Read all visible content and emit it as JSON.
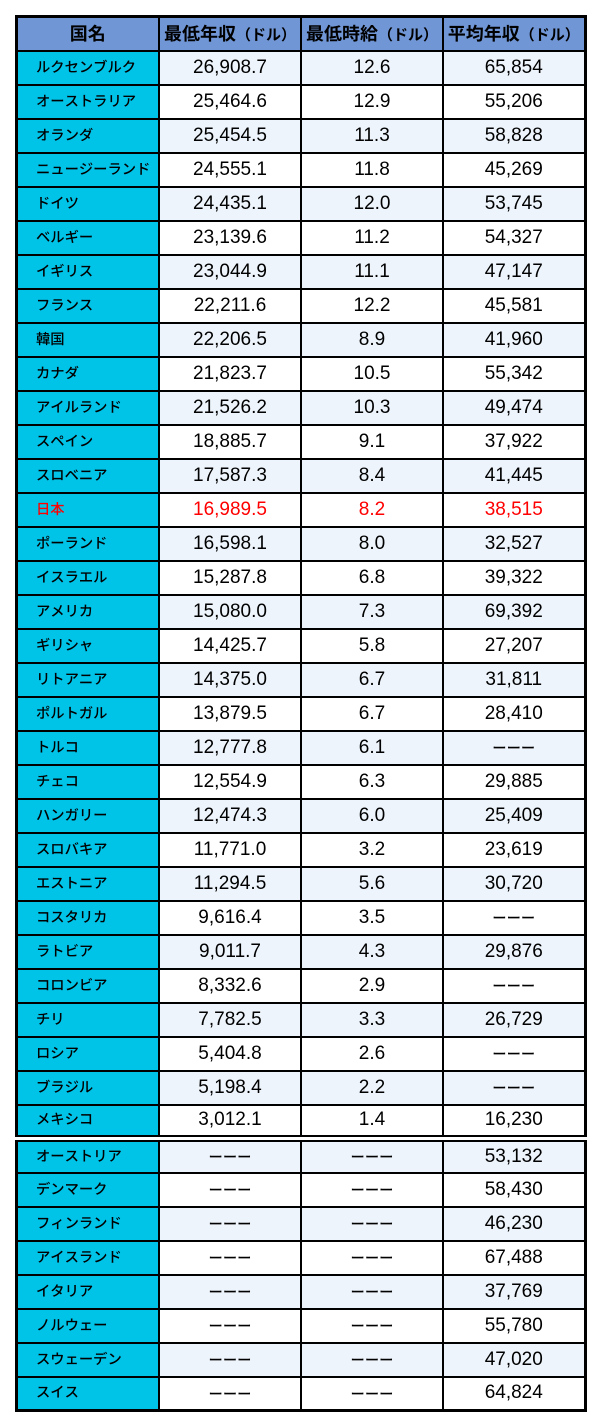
{
  "colors": {
    "page_bg": "#ffffff",
    "header_bg": "#7096d6",
    "country_bg": "#00c3e8",
    "row_tint": "#edf4fb",
    "row_white": "#ffffff",
    "border": "#000000",
    "text": "#000000",
    "highlight_text": "#ff0000"
  },
  "table": {
    "columns": [
      {
        "label": "国名",
        "unit": ""
      },
      {
        "label": "最低年収",
        "unit": "（ドル）"
      },
      {
        "label": "最低時給",
        "unit": "（ドル）"
      },
      {
        "label": "平均年収",
        "unit": "（ドル）"
      }
    ],
    "no_data_marker": "ーーー",
    "highlighted_country": "日本",
    "rows": [
      {
        "country": "ルクセンブルク",
        "min_annual": "26,908.7",
        "min_hourly": "12.6",
        "avg_annual": "65,854"
      },
      {
        "country": "オーストラリア",
        "min_annual": "25,464.6",
        "min_hourly": "12.9",
        "avg_annual": "55,206"
      },
      {
        "country": "オランダ",
        "min_annual": "25,454.5",
        "min_hourly": "11.3",
        "avg_annual": "58,828"
      },
      {
        "country": "ニュージーランド",
        "min_annual": "24,555.1",
        "min_hourly": "11.8",
        "avg_annual": "45,269"
      },
      {
        "country": "ドイツ",
        "min_annual": "24,435.1",
        "min_hourly": "12.0",
        "avg_annual": "53,745"
      },
      {
        "country": "ベルギー",
        "min_annual": "23,139.6",
        "min_hourly": "11.2",
        "avg_annual": "54,327"
      },
      {
        "country": "イギリス",
        "min_annual": "23,044.9",
        "min_hourly": "11.1",
        "avg_annual": "47,147"
      },
      {
        "country": "フランス",
        "min_annual": "22,211.6",
        "min_hourly": "12.2",
        "avg_annual": "45,581"
      },
      {
        "country": "韓国",
        "min_annual": "22,206.5",
        "min_hourly": "8.9",
        "avg_annual": "41,960"
      },
      {
        "country": "カナダ",
        "min_annual": "21,823.7",
        "min_hourly": "10.5",
        "avg_annual": "55,342"
      },
      {
        "country": "アイルランド",
        "min_annual": "21,526.2",
        "min_hourly": "10.3",
        "avg_annual": "49,474"
      },
      {
        "country": "スペイン",
        "min_annual": "18,885.7",
        "min_hourly": "9.1",
        "avg_annual": "37,922"
      },
      {
        "country": "スロベニア",
        "min_annual": "17,587.3",
        "min_hourly": "8.4",
        "avg_annual": "41,445"
      },
      {
        "country": "日本",
        "min_annual": "16,989.5",
        "min_hourly": "8.2",
        "avg_annual": "38,515",
        "highlight": true
      },
      {
        "country": "ポーランド",
        "min_annual": "16,598.1",
        "min_hourly": "8.0",
        "avg_annual": "32,527"
      },
      {
        "country": "イスラエル",
        "min_annual": "15,287.8",
        "min_hourly": "6.8",
        "avg_annual": "39,322"
      },
      {
        "country": "アメリカ",
        "min_annual": "15,080.0",
        "min_hourly": "7.3",
        "avg_annual": "69,392"
      },
      {
        "country": "ギリシャ",
        "min_annual": "14,425.7",
        "min_hourly": "5.8",
        "avg_annual": "27,207"
      },
      {
        "country": "リトアニア",
        "min_annual": "14,375.0",
        "min_hourly": "6.7",
        "avg_annual": "31,811"
      },
      {
        "country": "ポルトガル",
        "min_annual": "13,879.5",
        "min_hourly": "6.7",
        "avg_annual": "28,410"
      },
      {
        "country": "トルコ",
        "min_annual": "12,777.8",
        "min_hourly": "6.1",
        "avg_annual": "ーーー"
      },
      {
        "country": "チェコ",
        "min_annual": "12,554.9",
        "min_hourly": "6.3",
        "avg_annual": "29,885"
      },
      {
        "country": "ハンガリー",
        "min_annual": "12,474.3",
        "min_hourly": "6.0",
        "avg_annual": "25,409"
      },
      {
        "country": "スロバキア",
        "min_annual": "11,771.0",
        "min_hourly": "3.2",
        "avg_annual": "23,619"
      },
      {
        "country": "エストニア",
        "min_annual": "11,294.5",
        "min_hourly": "5.6",
        "avg_annual": "30,720"
      },
      {
        "country": "コスタリカ",
        "min_annual": "9,616.4",
        "min_hourly": "3.5",
        "avg_annual": "ーーー"
      },
      {
        "country": "ラトビア",
        "min_annual": "9,011.7",
        "min_hourly": "4.3",
        "avg_annual": "29,876"
      },
      {
        "country": "コロンビア",
        "min_annual": "8,332.6",
        "min_hourly": "2.9",
        "avg_annual": "ーーー"
      },
      {
        "country": "チリ",
        "min_annual": "7,782.5",
        "min_hourly": "3.3",
        "avg_annual": "26,729"
      },
      {
        "country": "ロシア",
        "min_annual": "5,404.8",
        "min_hourly": "2.6",
        "avg_annual": "ーーー"
      },
      {
        "country": "ブラジル",
        "min_annual": "5,198.4",
        "min_hourly": "2.2",
        "avg_annual": "ーーー"
      },
      {
        "country": "メキシコ",
        "min_annual": "3,012.1",
        "min_hourly": "1.4",
        "avg_annual": "16,230",
        "section_end": true
      },
      {
        "country": "オーストリア",
        "min_annual": "ーーー",
        "min_hourly": "ーーー",
        "avg_annual": "53,132"
      },
      {
        "country": "デンマーク",
        "min_annual": "ーーー",
        "min_hourly": "ーーー",
        "avg_annual": "58,430"
      },
      {
        "country": "フィンランド",
        "min_annual": "ーーー",
        "min_hourly": "ーーー",
        "avg_annual": "46,230"
      },
      {
        "country": "アイスランド",
        "min_annual": "ーーー",
        "min_hourly": "ーーー",
        "avg_annual": "67,488"
      },
      {
        "country": "イタリア",
        "min_annual": "ーーー",
        "min_hourly": "ーーー",
        "avg_annual": "37,769"
      },
      {
        "country": "ノルウェー",
        "min_annual": "ーーー",
        "min_hourly": "ーーー",
        "avg_annual": "55,780"
      },
      {
        "country": "スウェーデン",
        "min_annual": "ーーー",
        "min_hourly": "ーーー",
        "avg_annual": "47,020"
      },
      {
        "country": "スイス",
        "min_annual": "ーーー",
        "min_hourly": "ーーー",
        "avg_annual": "64,824"
      }
    ]
  },
  "chart_data": {
    "type": "table",
    "title": "",
    "columns": [
      "国名",
      "最低年収（ドル）",
      "最低時給（ドル）",
      "平均年収（ドル）"
    ],
    "rows": [
      [
        "ルクセンブルク",
        "26,908.7",
        "12.6",
        "65,854"
      ],
      [
        "オーストラリア",
        "25,464.6",
        "12.9",
        "55,206"
      ],
      [
        "オランダ",
        "25,454.5",
        "11.3",
        "58,828"
      ],
      [
        "ニュージーランド",
        "24,555.1",
        "11.8",
        "45,269"
      ],
      [
        "ドイツ",
        "24,435.1",
        "12.0",
        "53,745"
      ],
      [
        "ベルギー",
        "23,139.6",
        "11.2",
        "54,327"
      ],
      [
        "イギリス",
        "23,044.9",
        "11.1",
        "47,147"
      ],
      [
        "フランス",
        "22,211.6",
        "12.2",
        "45,581"
      ],
      [
        "韓国",
        "22,206.5",
        "8.9",
        "41,960"
      ],
      [
        "カナダ",
        "21,823.7",
        "10.5",
        "55,342"
      ],
      [
        "アイルランド",
        "21,526.2",
        "10.3",
        "49,474"
      ],
      [
        "スペイン",
        "18,885.7",
        "9.1",
        "37,922"
      ],
      [
        "スロベニア",
        "17,587.3",
        "8.4",
        "41,445"
      ],
      [
        "日本",
        "16,989.5",
        "8.2",
        "38,515"
      ],
      [
        "ポーランド",
        "16,598.1",
        "8.0",
        "32,527"
      ],
      [
        "イスラエル",
        "15,287.8",
        "6.8",
        "39,322"
      ],
      [
        "アメリカ",
        "15,080.0",
        "7.3",
        "69,392"
      ],
      [
        "ギリシャ",
        "14,425.7",
        "5.8",
        "27,207"
      ],
      [
        "リトアニア",
        "14,375.0",
        "6.7",
        "31,811"
      ],
      [
        "ポルトガル",
        "13,879.5",
        "6.7",
        "28,410"
      ],
      [
        "トルコ",
        "12,777.8",
        "6.1",
        "ーーー"
      ],
      [
        "チェコ",
        "12,554.9",
        "6.3",
        "29,885"
      ],
      [
        "ハンガリー",
        "12,474.3",
        "6.0",
        "25,409"
      ],
      [
        "スロバキア",
        "11,771.0",
        "3.2",
        "23,619"
      ],
      [
        "エストニア",
        "11,294.5",
        "5.6",
        "30,720"
      ],
      [
        "コスタリカ",
        "9,616.4",
        "3.5",
        "ーーー"
      ],
      [
        "ラトビア",
        "9,011.7",
        "4.3",
        "29,876"
      ],
      [
        "コロンビア",
        "8,332.6",
        "2.9",
        "ーーー"
      ],
      [
        "チリ",
        "7,782.5",
        "3.3",
        "26,729"
      ],
      [
        "ロシア",
        "5,404.8",
        "2.6",
        "ーーー"
      ],
      [
        "ブラジル",
        "5,198.4",
        "2.2",
        "ーーー"
      ],
      [
        "メキシコ",
        "3,012.1",
        "1.4",
        "16,230"
      ],
      [
        "オーストリア",
        "ーーー",
        "ーーー",
        "53,132"
      ],
      [
        "デンマーク",
        "ーーー",
        "ーーー",
        "58,430"
      ],
      [
        "フィンランド",
        "ーーー",
        "ーーー",
        "46,230"
      ],
      [
        "アイスランド",
        "ーーー",
        "ーーー",
        "67,488"
      ],
      [
        "イタリア",
        "ーーー",
        "ーーー",
        "37,769"
      ],
      [
        "ノルウェー",
        "ーーー",
        "ーーー",
        "55,780"
      ],
      [
        "スウェーデン",
        "ーーー",
        "ーーー",
        "47,020"
      ],
      [
        "スイス",
        "ーーー",
        "ーーー",
        "64,824"
      ]
    ],
    "notes": {
      "no_data_marker": "ーーー",
      "highlighted_row": "日本",
      "section_break_after": "メキシコ"
    }
  }
}
